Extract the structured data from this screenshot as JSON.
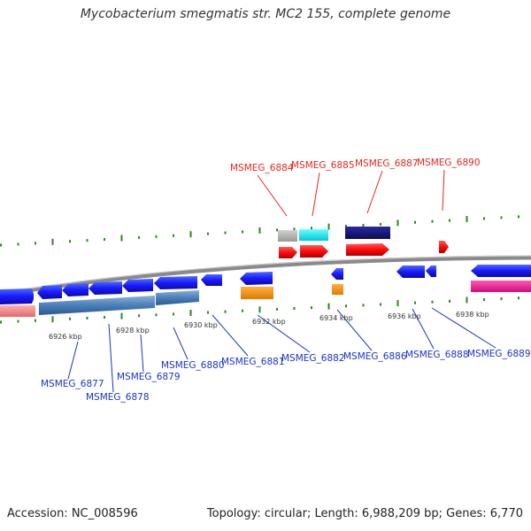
{
  "title": "Mycobacterium smegmatis str. MC2 155, complete genome",
  "footer": {
    "accession": "Accession: NC_008596",
    "summary": "Topology: circular; Length: 6,988,209 bp; Genes: 6,770"
  },
  "colors": {
    "top_label": "#e8261c",
    "bottom_label": "#1a33cc",
    "backbone": "#8a8a8a",
    "tick_green": "#2a8a1a"
  },
  "axis_ticks": [
    "6926 kbp",
    "6928 kbp",
    "6930 kbp",
    "6932 kbp",
    "6934 kbp",
    "6936 kbp",
    "6938 kbp"
  ],
  "top_genes": [
    "MSMEG_6884",
    "MSMEG_6885",
    "MSMEG_6887",
    "MSMEG_6890"
  ],
  "bottom_genes": [
    "MSMEG_6877",
    "MSMEG_6878",
    "MSMEG_6879",
    "MSMEG_6880",
    "MSMEG_6881",
    "MSMEG_6882",
    "MSMEG_6886",
    "MSMEG_6888",
    "MSMEG_6889"
  ]
}
